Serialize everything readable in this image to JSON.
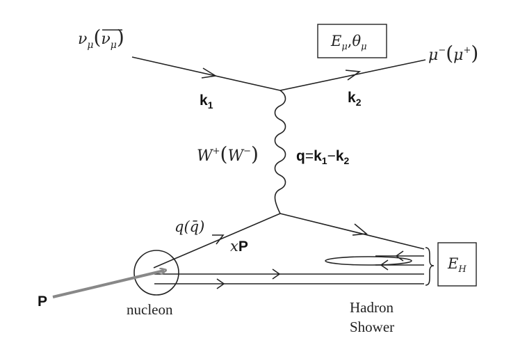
{
  "labels": {
    "incoming_nu": "ν",
    "incoming_nu_sub": "μ",
    "incoming_paren_open": "(",
    "incoming_nubar": "ν",
    "incoming_nubar_sub": "μ",
    "incoming_paren_close": ")",
    "k1": "k",
    "k1_sub": "1",
    "k2": "k",
    "k2_sub": "2",
    "box_top_E": "E",
    "box_top_E_sub": "μ",
    "box_top_comma": ",",
    "box_top_theta": "θ",
    "box_top_theta_sub": "μ",
    "outgoing_mu": "μ",
    "outgoing_mu_sup": "−",
    "outgoing_paren_open": "(",
    "outgoing_mubar": "μ",
    "outgoing_mubar_sup": "+",
    "outgoing_paren_close": ")",
    "W": "W",
    "W_sup": "+",
    "W_paren_open": "(",
    "W2": "W",
    "W2_sup": "−",
    "W_paren_close": ")",
    "q_eq": "q",
    "eq_sign": "=",
    "q_k1": "k",
    "q_k1_sub": "1",
    "minus": "−",
    "q_k2": "k",
    "q_k2_sub": "2",
    "quark": "q",
    "quark_paren": "(q̄)",
    "xP_x": "x",
    "xP_P": "P",
    "proton": "P",
    "nucleon": "nucleon",
    "box_EH": "E",
    "box_EH_sub": "H",
    "hadron": "Hadron",
    "shower": "Shower"
  }
}
